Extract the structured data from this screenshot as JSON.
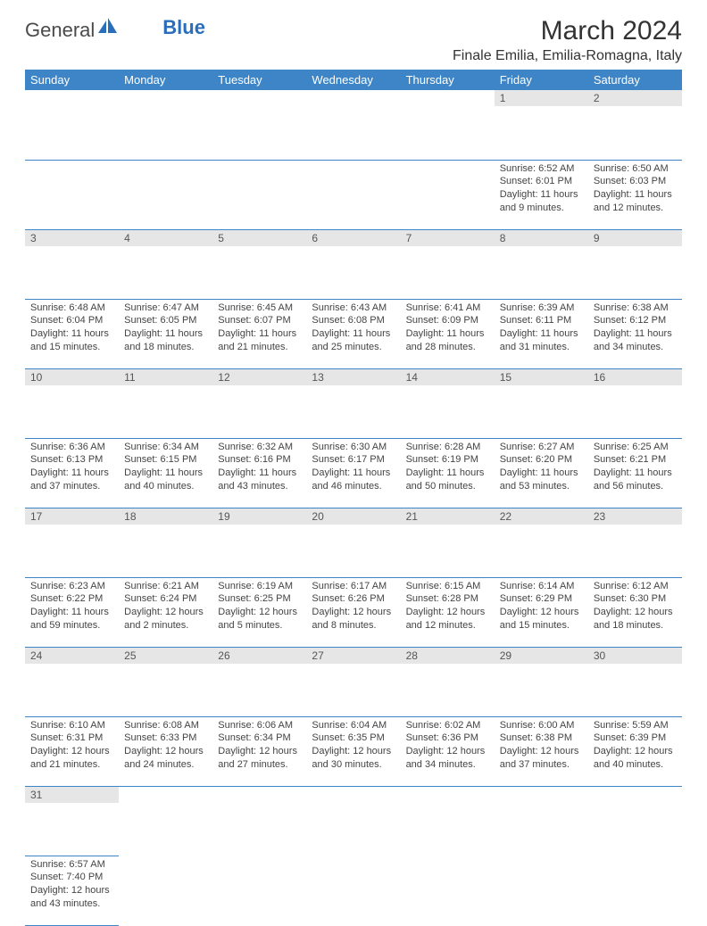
{
  "logo": {
    "text1": "General",
    "text2": "Blue"
  },
  "header": {
    "month_title": "March 2024",
    "location": "Finale Emilia, Emilia-Romagna, Italy"
  },
  "colors": {
    "header_bg": "#3d85c6",
    "header_text": "#ffffff",
    "daynum_bg": "#e6e6e6",
    "row_border": "#3d85c6",
    "logo_blue": "#2a6ebb"
  },
  "weekdays": [
    "Sunday",
    "Monday",
    "Tuesday",
    "Wednesday",
    "Thursday",
    "Friday",
    "Saturday"
  ],
  "weeks": [
    [
      null,
      null,
      null,
      null,
      null,
      {
        "n": "1",
        "sr": "Sunrise: 6:52 AM",
        "ss": "Sunset: 6:01 PM",
        "dl": "Daylight: 11 hours and 9 minutes."
      },
      {
        "n": "2",
        "sr": "Sunrise: 6:50 AM",
        "ss": "Sunset: 6:03 PM",
        "dl": "Daylight: 11 hours and 12 minutes."
      }
    ],
    [
      {
        "n": "3",
        "sr": "Sunrise: 6:48 AM",
        "ss": "Sunset: 6:04 PM",
        "dl": "Daylight: 11 hours and 15 minutes."
      },
      {
        "n": "4",
        "sr": "Sunrise: 6:47 AM",
        "ss": "Sunset: 6:05 PM",
        "dl": "Daylight: 11 hours and 18 minutes."
      },
      {
        "n": "5",
        "sr": "Sunrise: 6:45 AM",
        "ss": "Sunset: 6:07 PM",
        "dl": "Daylight: 11 hours and 21 minutes."
      },
      {
        "n": "6",
        "sr": "Sunrise: 6:43 AM",
        "ss": "Sunset: 6:08 PM",
        "dl": "Daylight: 11 hours and 25 minutes."
      },
      {
        "n": "7",
        "sr": "Sunrise: 6:41 AM",
        "ss": "Sunset: 6:09 PM",
        "dl": "Daylight: 11 hours and 28 minutes."
      },
      {
        "n": "8",
        "sr": "Sunrise: 6:39 AM",
        "ss": "Sunset: 6:11 PM",
        "dl": "Daylight: 11 hours and 31 minutes."
      },
      {
        "n": "9",
        "sr": "Sunrise: 6:38 AM",
        "ss": "Sunset: 6:12 PM",
        "dl": "Daylight: 11 hours and 34 minutes."
      }
    ],
    [
      {
        "n": "10",
        "sr": "Sunrise: 6:36 AM",
        "ss": "Sunset: 6:13 PM",
        "dl": "Daylight: 11 hours and 37 minutes."
      },
      {
        "n": "11",
        "sr": "Sunrise: 6:34 AM",
        "ss": "Sunset: 6:15 PM",
        "dl": "Daylight: 11 hours and 40 minutes."
      },
      {
        "n": "12",
        "sr": "Sunrise: 6:32 AM",
        "ss": "Sunset: 6:16 PM",
        "dl": "Daylight: 11 hours and 43 minutes."
      },
      {
        "n": "13",
        "sr": "Sunrise: 6:30 AM",
        "ss": "Sunset: 6:17 PM",
        "dl": "Daylight: 11 hours and 46 minutes."
      },
      {
        "n": "14",
        "sr": "Sunrise: 6:28 AM",
        "ss": "Sunset: 6:19 PM",
        "dl": "Daylight: 11 hours and 50 minutes."
      },
      {
        "n": "15",
        "sr": "Sunrise: 6:27 AM",
        "ss": "Sunset: 6:20 PM",
        "dl": "Daylight: 11 hours and 53 minutes."
      },
      {
        "n": "16",
        "sr": "Sunrise: 6:25 AM",
        "ss": "Sunset: 6:21 PM",
        "dl": "Daylight: 11 hours and 56 minutes."
      }
    ],
    [
      {
        "n": "17",
        "sr": "Sunrise: 6:23 AM",
        "ss": "Sunset: 6:22 PM",
        "dl": "Daylight: 11 hours and 59 minutes."
      },
      {
        "n": "18",
        "sr": "Sunrise: 6:21 AM",
        "ss": "Sunset: 6:24 PM",
        "dl": "Daylight: 12 hours and 2 minutes."
      },
      {
        "n": "19",
        "sr": "Sunrise: 6:19 AM",
        "ss": "Sunset: 6:25 PM",
        "dl": "Daylight: 12 hours and 5 minutes."
      },
      {
        "n": "20",
        "sr": "Sunrise: 6:17 AM",
        "ss": "Sunset: 6:26 PM",
        "dl": "Daylight: 12 hours and 8 minutes."
      },
      {
        "n": "21",
        "sr": "Sunrise: 6:15 AM",
        "ss": "Sunset: 6:28 PM",
        "dl": "Daylight: 12 hours and 12 minutes."
      },
      {
        "n": "22",
        "sr": "Sunrise: 6:14 AM",
        "ss": "Sunset: 6:29 PM",
        "dl": "Daylight: 12 hours and 15 minutes."
      },
      {
        "n": "23",
        "sr": "Sunrise: 6:12 AM",
        "ss": "Sunset: 6:30 PM",
        "dl": "Daylight: 12 hours and 18 minutes."
      }
    ],
    [
      {
        "n": "24",
        "sr": "Sunrise: 6:10 AM",
        "ss": "Sunset: 6:31 PM",
        "dl": "Daylight: 12 hours and 21 minutes."
      },
      {
        "n": "25",
        "sr": "Sunrise: 6:08 AM",
        "ss": "Sunset: 6:33 PM",
        "dl": "Daylight: 12 hours and 24 minutes."
      },
      {
        "n": "26",
        "sr": "Sunrise: 6:06 AM",
        "ss": "Sunset: 6:34 PM",
        "dl": "Daylight: 12 hours and 27 minutes."
      },
      {
        "n": "27",
        "sr": "Sunrise: 6:04 AM",
        "ss": "Sunset: 6:35 PM",
        "dl": "Daylight: 12 hours and 30 minutes."
      },
      {
        "n": "28",
        "sr": "Sunrise: 6:02 AM",
        "ss": "Sunset: 6:36 PM",
        "dl": "Daylight: 12 hours and 34 minutes."
      },
      {
        "n": "29",
        "sr": "Sunrise: 6:00 AM",
        "ss": "Sunset: 6:38 PM",
        "dl": "Daylight: 12 hours and 37 minutes."
      },
      {
        "n": "30",
        "sr": "Sunrise: 5:59 AM",
        "ss": "Sunset: 6:39 PM",
        "dl": "Daylight: 12 hours and 40 minutes."
      }
    ],
    [
      {
        "n": "31",
        "sr": "Sunrise: 6:57 AM",
        "ss": "Sunset: 7:40 PM",
        "dl": "Daylight: 12 hours and 43 minutes."
      },
      null,
      null,
      null,
      null,
      null,
      null
    ]
  ]
}
